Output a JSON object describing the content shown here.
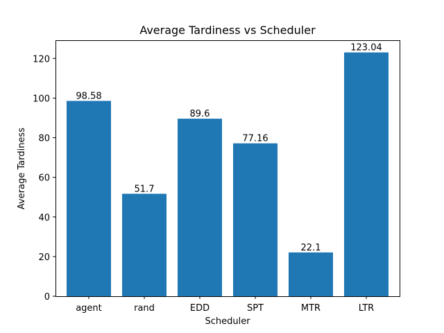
{
  "chart_data": {
    "type": "bar",
    "title": "Average Tardiness vs Scheduler",
    "xlabel": "Scheduler",
    "ylabel": "Average Tardiness",
    "categories": [
      "agent",
      "rand",
      "EDD",
      "SPT",
      "MTR",
      "LTR"
    ],
    "values": [
      98.58,
      51.7,
      89.6,
      77.16,
      22.1,
      123.04
    ],
    "data_labels": [
      "98.58",
      "51.7",
      "89.6",
      "77.16",
      "22.1",
      "123.04"
    ],
    "ylim": [
      0,
      129.192
    ],
    "yticks": [
      0,
      20,
      40,
      60,
      80,
      100,
      120
    ],
    "bar_color": "#1f77b4",
    "grid": false,
    "legend": "none"
  }
}
